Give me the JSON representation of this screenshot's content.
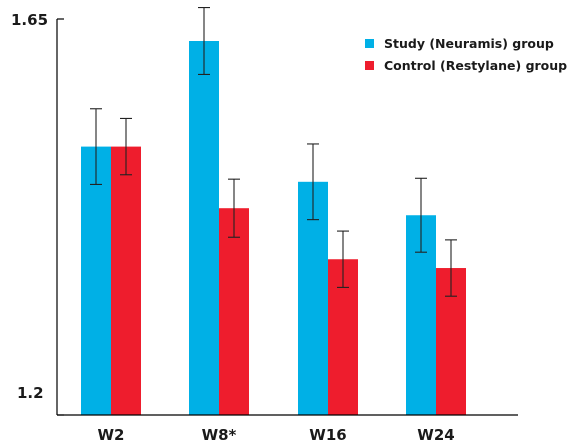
{
  "chart_data": {
    "type": "bar",
    "categories": [
      "W2",
      "W8*",
      "W16",
      "W24"
    ],
    "series": [
      {
        "name": "Study (Neuramis) group",
        "color": "#00b0e6",
        "values": [
          1.505,
          1.625,
          1.465,
          1.427
        ],
        "error": [
          0.043,
          0.038,
          0.043,
          0.042
        ]
      },
      {
        "name": "Control (Restylane) group",
        "color": "#ee1d2d",
        "values": [
          1.505,
          1.435,
          1.377,
          1.367
        ],
        "error": [
          0.032,
          0.033,
          0.032,
          0.032
        ]
      }
    ],
    "ylim": [
      1.2,
      1.65
    ],
    "y_tick_labels": [
      "1.2",
      "1.65"
    ],
    "legend_position": "top-right",
    "grid": false
  }
}
